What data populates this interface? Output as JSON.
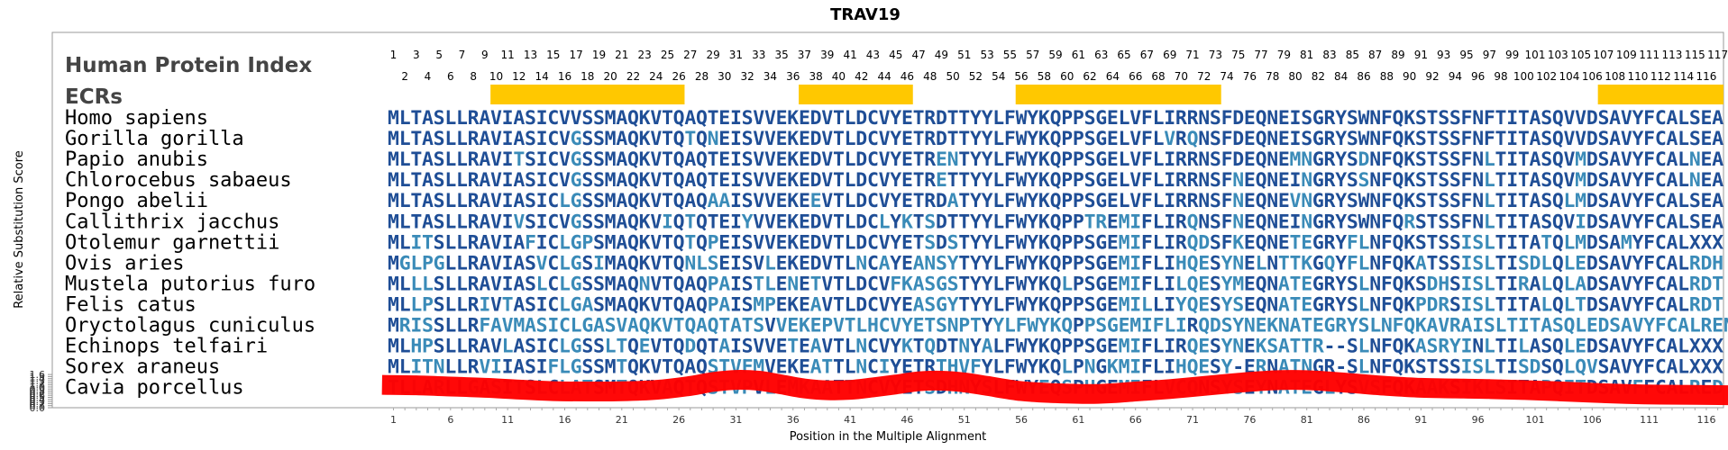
{
  "chart_data": {
    "type": "line",
    "title": "TRAV19",
    "xlabel": "Position in the Multiple Alignment",
    "ylabel": "Relative Substitution Score",
    "ylim": [
      0,
      1.6
    ],
    "xlim": [
      0.5,
      118
    ],
    "yticks": [
      "0.0",
      "0.1",
      "0.2",
      "0.3",
      "0.4",
      "0.5",
      "0.6",
      "0.7",
      "0.8",
      "0.9",
      "1.0",
      "1.1",
      "1.2",
      "1.3",
      "1.4",
      "1.5",
      "1.6"
    ],
    "xticks": [
      "1",
      "6",
      "11",
      "16",
      "21",
      "26",
      "31",
      "36",
      "41",
      "46",
      "51",
      "56",
      "61",
      "66",
      "71",
      "76",
      "81",
      "86",
      "91",
      "96",
      "101",
      "106",
      "111",
      "116"
    ],
    "header_label": "Human Protein Index",
    "ecr_label": "ECRs",
    "ecrs": [
      [
        10,
        26
      ],
      [
        37,
        46
      ],
      [
        56,
        73
      ],
      [
        107,
        117
      ]
    ],
    "human_index_max": 117,
    "series": [
      {
        "color": "#ff0000",
        "x": [
          0,
          3,
          6,
          9,
          12,
          15,
          18,
          21,
          24,
          27,
          29,
          31,
          33,
          35,
          37,
          39,
          41,
          43,
          45,
          47,
          49,
          51,
          53,
          56,
          59,
          62,
          64,
          66,
          69,
          72,
          75,
          78,
          80,
          82,
          85,
          88,
          91,
          94,
          97,
          100,
          103,
          106,
          109,
          112,
          115,
          118
        ],
        "y": [
          1.1,
          1.08,
          1.02,
          0.96,
          0.87,
          0.8,
          0.78,
          0.79,
          0.86,
          1.05,
          1.24,
          1.34,
          1.3,
          1.12,
          0.93,
          0.84,
          0.86,
          0.98,
          1.12,
          1.27,
          1.3,
          1.22,
          1.05,
          0.8,
          0.7,
          0.66,
          0.7,
          0.78,
          0.9,
          1.05,
          1.2,
          1.32,
          1.34,
          1.3,
          1.18,
          1.05,
          0.96,
          0.93,
          0.9,
          0.85,
          0.79,
          0.72,
          0.66,
          0.63,
          0.62,
          0.6
        ]
      }
    ],
    "species": [
      "Homo sapiens",
      "Gorilla gorilla",
      "Papio anubis",
      "Chlorocebus sabaeus",
      "Pongo abelii",
      "Callithrix jacchus",
      "Otolemur garnettii",
      "Ovis aries",
      "Mustela putorius furo",
      "Felis catus",
      "Oryctolagus cuniculus",
      "Echinops telfairi",
      "Sorex araneus",
      "Cavia porcellus"
    ],
    "sequences": [
      "MLTASLLRAVIASICVVSSMAQKVTQAQTEISVVEKEDVTLDCVYETRDTTYYLFWYKQPPSGELVFLIRRNSFDEQNEISGRYSWNFQKSTSSFNFTITASQVVDSAVYFCALSEA",
      "MLTASLLRAVIASICVGSSMAQKVTQTQNEISVVEKEDVTLDCVYETRDTTYYLFWYKQPPSGELVFLVRQNSFDEQNEISGRYSWNFQKSTSSFNFTITASQVVDSAVYFCALSEA",
      "MLTASLLRAVITSICVGSSMAQKVTQAQTEISVVEKEDVTLDCVYETRENTYYLFWYKQPPSGELVFLIRRNSFDEQNEMNGRYSDNFQKSTSSFNLTITASQVMDSAVYFCALNEA",
      "MLTASLLRAVIASICVGSSMAQKVTQAQTEISVVEKEDVTLDCVYETRETTYYLFWYKQPPSGELVFLIRRNSFNEQNEINGRYSSNFQKSTSSFNLTITASQVMDSAVYFCALNEA",
      "MLTASLLRAVIASICLGSSMAQKVTQAQAAISVVEKEEVTLDCVYETRDATYYLFWYKQPPSGELVFLIRRNSFNEQNEVNGRYSWNFQKSTSSFNLTITASQLMDSAVYFCALSEA",
      "MLTASLLRAVIVSICVGSSMAQKVIQTQTEIYVVEKEDVTLDCLYKTSDTTYYLFWYKQPPTREMIFLIRQNSFNEQNEINGRYSWNFQRSTSSFNLTITASQVIDSAVYFCALSEA",
      "MLITSLLRAVIAFICLGPSMAQKVTQTQPEISVVEKEDVTLDCVYETSDSTYYLFWYKQPPSGEMIFLIRQDSFKEQNETEGRYFLNFQKSTSSISLTITATQLMDSAMYFCALXXX",
      "MGLPGLLRAVIASVCLGSIMAQKVTQNLSEISVLEKEDVTLNCAYEANSYTYYLFWYKQPPSGEMIFLIHQESYNELNTTKGQYFLNFQKATSSISLTISDLQLEDSAVYFCALRDH",
      "MLLLSLLRAVIASLCLGSSMAQNVTQAQPAISTLENETVTLDCVFKASGSTYYLFWYKQLPSGEMIFLILQESYMEQNATEGRYSLNFQKSDHSISLTIRALQLADSAVYFCALRDT",
      "MLLPSLLRIVTASICLGASMAQKVTQAQPAISMPEKEAVTLDCVYEASGYTYYLFWYKQPPSGEMILLIYQESYSEQNATEGRYSLNFQKPDRSISLTITALQLTDSAVYFCALRDT",
      "MRISSLLRFAVMASICLGASVAQKVTQAQTATSVVEKEPVTLHCVYETSNPTYYLFWYKQPPSGEMIFLIRQDSYNEKNATEGRYSLNFQKAVRAISLTITASQLEDSAVYFCALREN",
      "MLHPSLLRAVLASICLGSSLTQEVTQDQTAISVVETEAVTLNCVYKTQDTNYALFWYKQPPSGEMIFLIRQESYNEKSATTR--SLNFQKASRYINLTILASQLEDSAVYFCALXXX",
      "MLITNLLRVIIASIFLGSSMTQKVTQAQSTVFMVEKEATTLNCIYETRTHVFYLFWYKQLPNGKMIFLIHQESY-ERNATNGR-SLNFQKSTSSISLTISDSQLQVSAVYFCALXXX",
      "TLLARLLGASITSLCLATSMTQKVAQTQSTVPVLEMKAATTNCVYETSDHNYSLFWYEQSPHGEMIFLVCQNSYSEYNATEGLYSVSFQKAAKSIKLSITAPQITDSAVFFCALRED"
    ]
  }
}
